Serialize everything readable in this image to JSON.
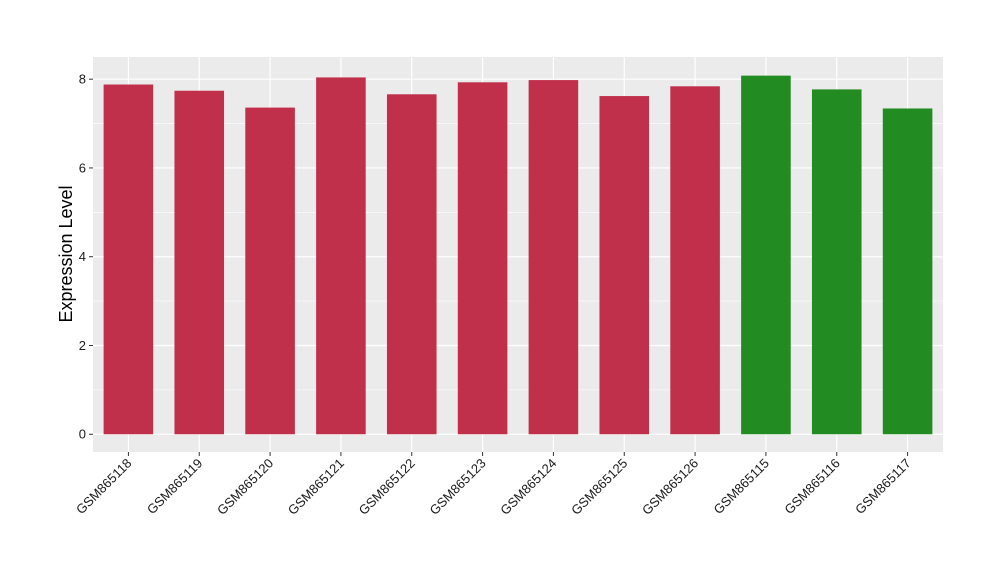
{
  "chart_data": {
    "type": "bar",
    "title": "",
    "xlabel": "",
    "ylabel": "Expression Level",
    "categories": [
      "GSM865118",
      "GSM865119",
      "GSM865120",
      "GSM865121",
      "GSM865122",
      "GSM865123",
      "GSM865124",
      "GSM865125",
      "GSM865126",
      "GSM865115",
      "GSM865116",
      "GSM865117"
    ],
    "values": [
      7.88,
      7.74,
      7.36,
      8.04,
      7.66,
      7.93,
      7.98,
      7.62,
      7.84,
      8.08,
      7.77,
      7.34
    ],
    "bar_colors": [
      "#c0304b",
      "#c0304b",
      "#c0304b",
      "#c0304b",
      "#c0304b",
      "#c0304b",
      "#c0304b",
      "#c0304b",
      "#c0304b",
      "#228b22",
      "#228b22",
      "#228b22"
    ],
    "yticks": [
      0,
      2,
      4,
      6,
      8
    ],
    "ylim": [
      -0.4,
      8.5
    ],
    "grid": true,
    "legend": "none",
    "panel_background": "#ebebeb",
    "grid_color": "#ffffff"
  }
}
